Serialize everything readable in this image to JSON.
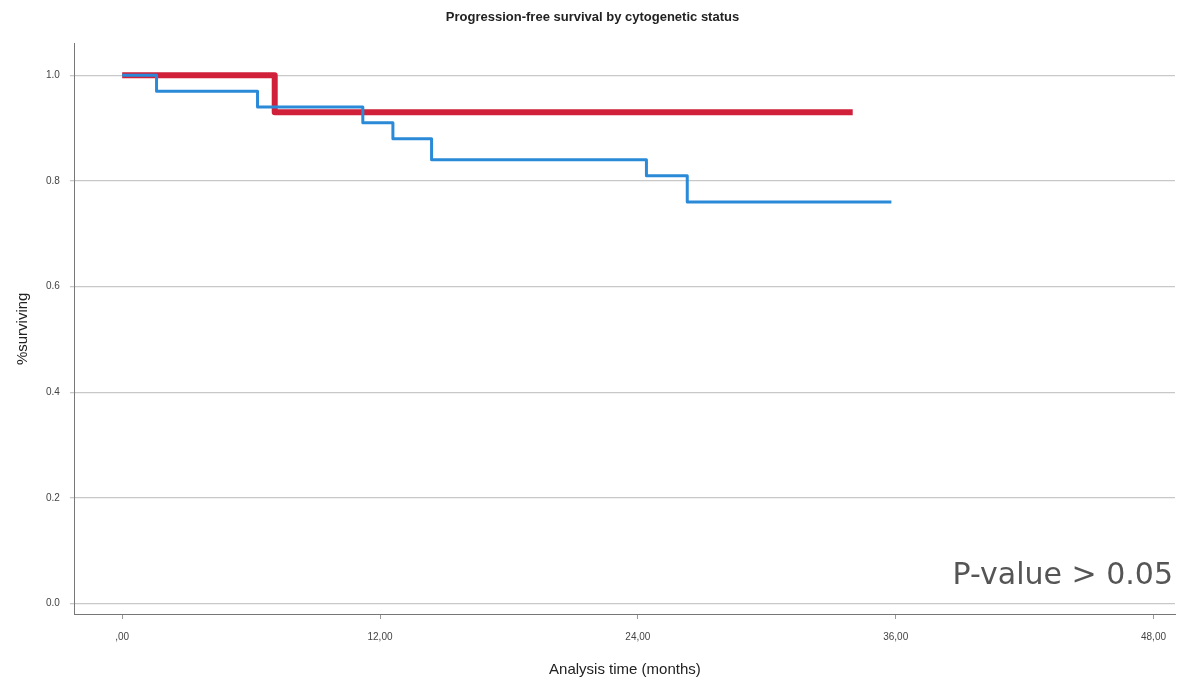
{
  "chart_data": {
    "type": "step",
    "title": "Progression-free survival by cytogenetic status",
    "xlabel": "Analysis time (months)",
    "ylabel": "%surviving",
    "series": [
      {
        "color": "#2a8ad8",
        "x": [
          0,
          1.6,
          6.3,
          11.2,
          12.6,
          14.4,
          24.4,
          26.3,
          35.8
        ],
        "values": [
          1,
          0.97,
          0.94,
          0.91,
          0.88,
          0.84,
          0.81,
          0.76,
          0.76
        ]
      },
      {
        "color": "#d0203a",
        "x": [
          0,
          7.1,
          34
        ],
        "values": [
          1,
          0.93,
          0.93
        ]
      }
    ],
    "xlim": [
      -2.2,
      49
    ],
    "xticks": [
      {
        "value": 0,
        "label": ",00"
      },
      {
        "value": 12,
        "label": "12,00"
      },
      {
        "value": 24,
        "label": "24,00"
      },
      {
        "value": 36,
        "label": "36,00"
      },
      {
        "value": 48,
        "label": "48,00"
      }
    ],
    "ylim": [
      -0.02,
      1.06
    ],
    "yticks": [
      {
        "value": 0,
        "label": "0.0"
      },
      {
        "value": 0.2,
        "label": "0.2"
      },
      {
        "value": 0.4,
        "label": "0.4"
      },
      {
        "value": 0.6,
        "label": "0.6"
      },
      {
        "value": 0.8,
        "label": "0.8"
      },
      {
        "value": 1,
        "label": "1.0"
      }
    ],
    "grid": "y",
    "legend": false,
    "annotations": [
      "P-value > 0.05"
    ]
  }
}
